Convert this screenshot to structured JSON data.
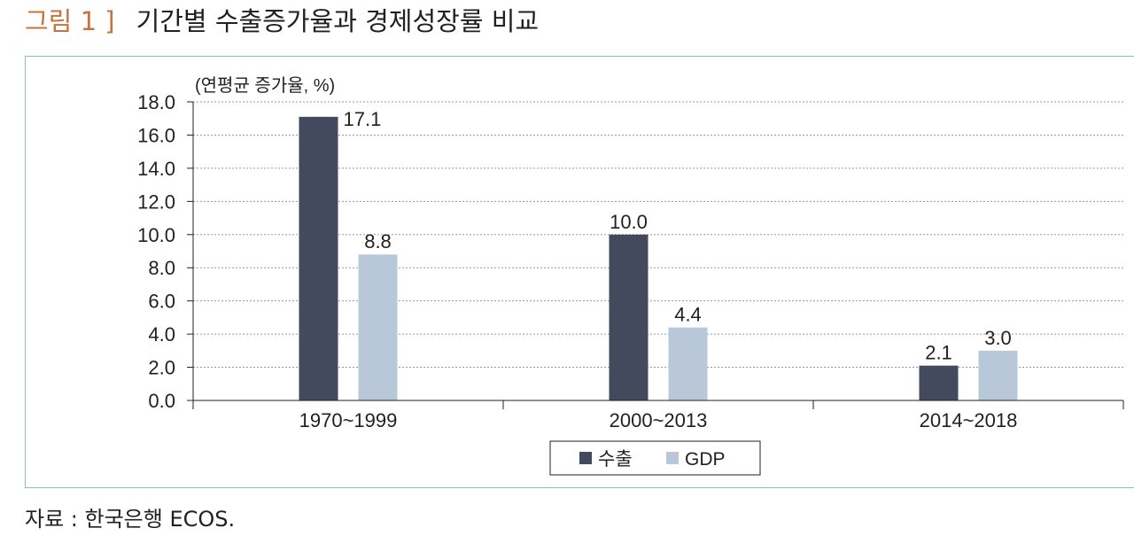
{
  "figure": {
    "number": "그림 1 ]",
    "title": "기간별 수출증가율과 경제성장률 비교",
    "source": "자료 : 한국은행 ECOS."
  },
  "colors": {
    "export": "#434a5e",
    "gdp": "#b9c8d9",
    "frame": "#8fbfbd",
    "accent": "#c8733b"
  },
  "chart_data": {
    "type": "bar",
    "unit_label": "(연평균 증가율, %)",
    "categories": [
      "1970~1999",
      "2000~2013",
      "2014~2018"
    ],
    "series": [
      {
        "name": "수출",
        "values": [
          17.1,
          10.0,
          2.1
        ],
        "labels": [
          "17.1",
          "10.0",
          "2.1"
        ],
        "color": "#434a5e"
      },
      {
        "name": "GDP",
        "values": [
          8.8,
          4.4,
          3.0
        ],
        "labels": [
          "8.8",
          "4.4",
          "3.0"
        ],
        "color": "#b9c8d9"
      }
    ],
    "ylim": [
      0,
      18
    ],
    "yticks": [
      "0.0",
      "2.0",
      "4.0",
      "6.0",
      "8.0",
      "10.0",
      "12.0",
      "14.0",
      "16.0",
      "18.0"
    ],
    "grid": true,
    "legend": "bottom-center"
  }
}
